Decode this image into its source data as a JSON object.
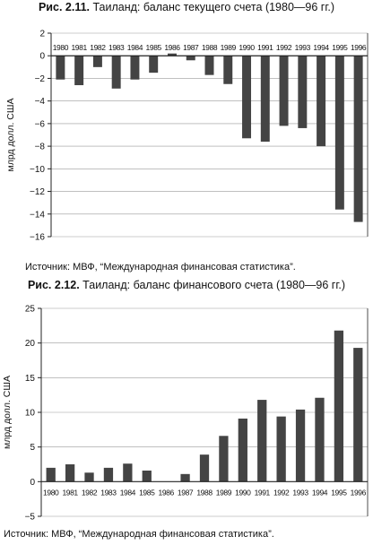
{
  "figures": [
    {
      "number": "Рис. 2.11.",
      "title": "Таиланд: баланс текущего счета (1980—96 гг.)",
      "source": "Источник: МВФ, “Международная финансовая статистика”."
    },
    {
      "number": "Рис. 2.12.",
      "title": "Таиланд: баланс финансового счета (1980—96 гг.)",
      "source": "Источник: МВФ, “Международная финансовая статистика”."
    }
  ],
  "colors": {
    "bar": "#444444",
    "axis": "#222222",
    "grid": "#9a9a9a"
  },
  "chart_data": [
    {
      "type": "bar",
      "title": "Таиланд: баланс текущего счета (1980—96 гг.)",
      "xlabel": "",
      "ylabel": "млрд долл. США",
      "categories": [
        "1980",
        "1981",
        "1982",
        "1983",
        "1984",
        "1985",
        "1986",
        "1987",
        "1988",
        "1989",
        "1990",
        "1991",
        "1992",
        "1993",
        "1994",
        "1995",
        "1996"
      ],
      "values": [
        -2.1,
        -2.6,
        -1.0,
        -2.9,
        -2.1,
        -1.5,
        0.2,
        -0.4,
        -1.7,
        -2.5,
        -7.3,
        -7.6,
        -6.2,
        -6.4,
        -8.0,
        -13.6,
        -14.7
      ],
      "yticks": [
        "2",
        "0",
        "−2",
        "−4",
        "−6",
        "−8",
        "−10",
        "−12",
        "−14",
        "−16"
      ],
      "ylim": [
        -16,
        2
      ],
      "grid": true,
      "category_labels_position": "top"
    },
    {
      "type": "bar",
      "title": "Таиланд: баланс финансового счета (1980—96 гг.)",
      "xlabel": "",
      "ylabel": "млрд долл. США",
      "categories": [
        "1980",
        "1981",
        "1982",
        "1983",
        "1984",
        "1985",
        "1986",
        "1987",
        "1988",
        "1989",
        "1990",
        "1991",
        "1992",
        "1993",
        "1994",
        "1995",
        "1996"
      ],
      "values": [
        2.0,
        2.5,
        1.3,
        2.0,
        2.6,
        1.6,
        0.0,
        1.1,
        3.9,
        6.6,
        9.1,
        11.8,
        9.4,
        10.4,
        12.1,
        21.8,
        19.3
      ],
      "yticks": [
        "25",
        "20",
        "15",
        "10",
        "5",
        "0",
        "−5"
      ],
      "ylim": [
        -5,
        25
      ],
      "grid": true,
      "category_labels_position": "bottom"
    }
  ]
}
